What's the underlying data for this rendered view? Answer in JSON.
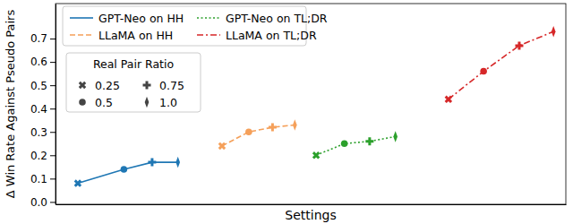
{
  "chart_data": {
    "type": "line",
    "x_label": "Settings",
    "y_label": "Δ Win Rate Against Pseudo Pairs",
    "xlim": [
      0,
      10.3
    ],
    "ylim": [
      -0.01,
      0.85
    ],
    "yticks": [
      {
        "value": 0,
        "label": "0.0"
      },
      0.1,
      0.2,
      0.3,
      0.4,
      0.5,
      0.6,
      0.7
    ],
    "tick_labels": "y",
    "grid": false,
    "legend": "upper left",
    "series": [
      {
        "name": "GPT-Neo on HH",
        "color": "#1f77b4",
        "line_style": "solid",
        "x": [
          0.45,
          1.38,
          1.95,
          2.47
        ],
        "values": [
          0.08,
          0.14,
          0.17,
          0.17
        ]
      },
      {
        "name": "LLaMA on HH",
        "color": "#f5a05a",
        "line_style": "dashed",
        "x": [
          3.36,
          3.9,
          4.38,
          4.83
        ],
        "values": [
          0.24,
          0.3,
          0.32,
          0.33
        ]
      },
      {
        "name": "GPT-Neo on TL;DR",
        "color": "#2ca02c",
        "line_style": "dotted",
        "x": [
          5.26,
          5.83,
          6.34,
          6.86
        ],
        "values": [
          0.2,
          0.25,
          0.26,
          0.28
        ]
      },
      {
        "name": "LLaMA on TL;DR",
        "color": "#d62728",
        "line_style": "dashdot",
        "x": [
          7.93,
          8.64,
          9.36,
          10.05
        ],
        "values": [
          0.44,
          0.56,
          0.67,
          0.73
        ]
      }
    ],
    "marker_legend": {
      "title": "Real Pair Ratio",
      "labels": [
        "0.25",
        "0.5",
        "0.75",
        "1.0"
      ],
      "markers": [
        "X",
        "circle",
        "plus",
        "thin_diamond"
      ]
    }
  }
}
